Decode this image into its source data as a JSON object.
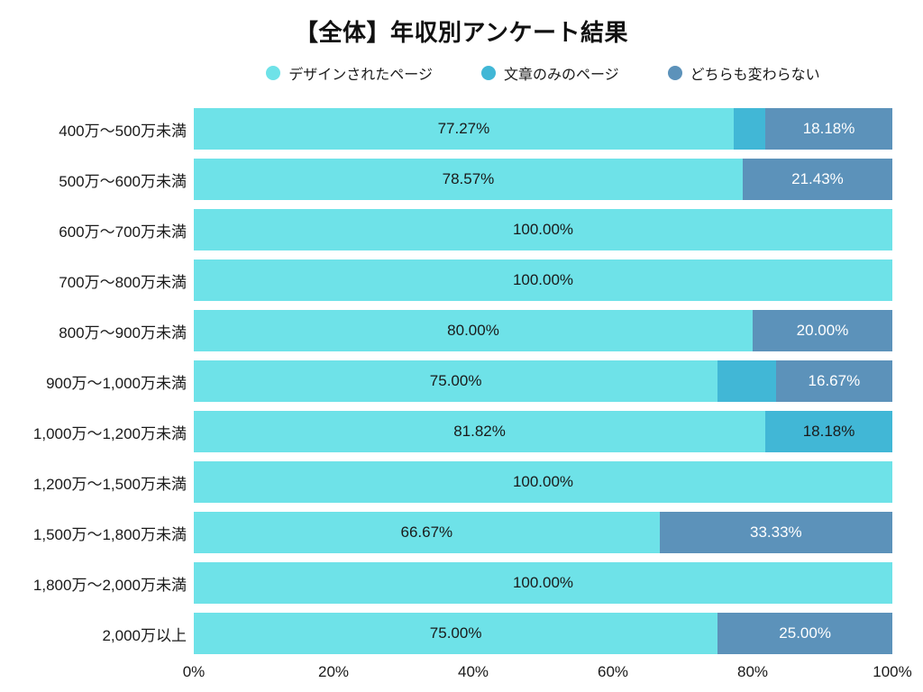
{
  "title": "【全体】年収別アンケート結果",
  "chart_data": {
    "type": "bar",
    "orientation": "horizontal",
    "stacked": true,
    "xlim": [
      0,
      100
    ],
    "x_tick_labels": [
      "0%",
      "20%",
      "40%",
      "60%",
      "80%",
      "100%"
    ],
    "legend_position": "top",
    "grid": false,
    "categories": [
      "400万〜500万未満",
      "500万〜600万未満",
      "600万〜700万未満",
      "700万〜800万未満",
      "800万〜900万未満",
      "900万〜1,000万未満",
      "1,000万〜1,200万未満",
      "1,200万〜1,500万未満",
      "1,500万〜1,800万未満",
      "1,800万〜2,000万未満",
      "2,000万以上"
    ],
    "series": [
      {
        "name": "デザインされたページ",
        "color": "#6ee2e8",
        "label_color": "#1a1a1a",
        "values": [
          77.27,
          78.57,
          100.0,
          100.0,
          80.0,
          75.0,
          81.82,
          100.0,
          66.67,
          100.0,
          75.0
        ]
      },
      {
        "name": "文章のみのページ",
        "color": "#41b7d6",
        "label_color": "#1a1a1a",
        "values": [
          4.55,
          0,
          0,
          0,
          0,
          8.33,
          18.18,
          0,
          0,
          0,
          0
        ]
      },
      {
        "name": "どちらも変わらない",
        "color": "#5c92ba",
        "label_color": "#ffffff",
        "values": [
          18.18,
          21.43,
          0,
          0,
          20.0,
          16.67,
          0,
          0,
          33.33,
          0,
          25.0
        ]
      }
    ],
    "segment_labels": [
      [
        "77.27%",
        "",
        "18.18%"
      ],
      [
        "78.57%",
        "",
        "21.43%"
      ],
      [
        "100.00%",
        "",
        ""
      ],
      [
        "100.00%",
        "",
        ""
      ],
      [
        "80.00%",
        "",
        "20.00%"
      ],
      [
        "75.00%",
        "",
        "16.67%"
      ],
      [
        "81.82%",
        "18.18%",
        ""
      ],
      [
        "100.00%",
        "",
        ""
      ],
      [
        "66.67%",
        "",
        "33.33%"
      ],
      [
        "100.00%",
        "",
        ""
      ],
      [
        "75.00%",
        "",
        "25.00%"
      ]
    ]
  }
}
